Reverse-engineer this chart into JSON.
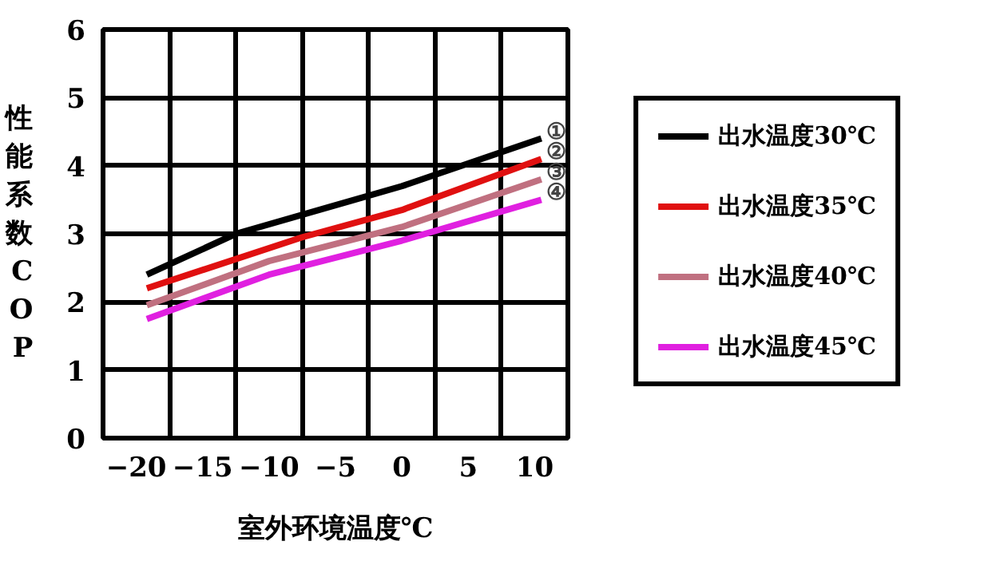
{
  "chart_data": {
    "type": "line",
    "xlabel": "室外环境温度℃",
    "ylabel": "性能系数COP",
    "xlim": [
      -22.5,
      12.5
    ],
    "ylim": [
      0,
      6
    ],
    "xticks": [
      -20,
      {
        "value": -17.5,
        "label": null
      },
      -15,
      {
        "value": -12.5,
        "label": null
      },
      -10,
      {
        "value": -7.5,
        "label": null
      },
      -5,
      {
        "value": -2.5,
        "label": null
      },
      0,
      {
        "value": 2.5,
        "label": null
      },
      5,
      {
        "value": 7.5,
        "label": null
      },
      10
    ],
    "yticks": [
      0,
      1,
      2,
      3,
      4,
      5,
      6
    ],
    "grid": true,
    "legend": "right",
    "line_style": "solid",
    "marker": "none",
    "series": [
      {
        "name": "出水温度30℃",
        "color": "#000000",
        "x": [
          -19.2,
          -12.5,
          0,
          10.5
        ],
        "values": [
          2.4,
          3.0,
          3.7,
          4.4
        ]
      },
      {
        "name": "出水温度35℃",
        "color": "#e01010",
        "x": [
          -19.2,
          -7.5,
          0,
          10.5
        ],
        "values": [
          2.2,
          2.95,
          3.35,
          4.1
        ]
      },
      {
        "name": "出水温度40℃",
        "color": "#c07080",
        "x": [
          -19.2,
          -10,
          0,
          10.5
        ],
        "values": [
          1.95,
          2.6,
          3.1,
          3.8
        ]
      },
      {
        "name": "出水温度45℃",
        "color": "#e020e0",
        "x": [
          -19.2,
          -10,
          0,
          10.5
        ],
        "values": [
          1.75,
          2.4,
          2.9,
          3.5
        ]
      }
    ],
    "annotations": [
      "①",
      "②",
      "③",
      "④"
    ]
  }
}
